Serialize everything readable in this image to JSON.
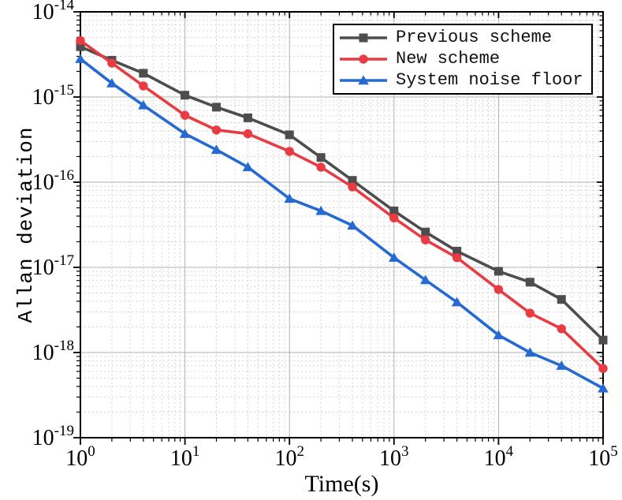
{
  "figure": {
    "background": "#ffffff",
    "axis_color": "#000000"
  },
  "chart_data": {
    "type": "line",
    "title": "",
    "xlabel": "Time(s)",
    "ylabel": "Allan deviation",
    "x_scale": "log",
    "y_scale": "log",
    "xlim": [
      1,
      100000
    ],
    "ylim": [
      1e-19,
      1e-14
    ],
    "x_tick_exponents": [
      0,
      1,
      2,
      3,
      4,
      5
    ],
    "y_tick_exponents": [
      -14,
      -15,
      -16,
      -17,
      -18,
      -19
    ],
    "grid": {
      "major": true,
      "minor": true,
      "major_color": "#b0b0b0",
      "minor_color": "#d6d6d6"
    },
    "legend_position": "top-right",
    "x": [
      1,
      2,
      4,
      10,
      20,
      40,
      100,
      200,
      400,
      1000,
      2000,
      4000,
      10000,
      20000,
      40000,
      100000
    ],
    "series": [
      {
        "name": "Previous scheme",
        "color": "#4d4d4d",
        "marker": "square",
        "values": [
          3.9e-15,
          2.7e-15,
          1.9e-15,
          1.05e-15,
          7.6e-16,
          5.7e-16,
          3.6e-16,
          1.95e-16,
          1.05e-16,
          4.6e-17,
          2.6e-17,
          1.55e-17,
          9e-18,
          6.7e-18,
          4.2e-18,
          1.4e-18
        ]
      },
      {
        "name": "New scheme",
        "color": "#e83b42",
        "marker": "circle",
        "values": [
          4.6e-15,
          2.5e-15,
          1.35e-15,
          6.1e-16,
          4.1e-16,
          3.7e-16,
          2.3e-16,
          1.5e-16,
          8.8e-17,
          3.8e-17,
          2.1e-17,
          1.3e-17,
          5.5e-18,
          2.9e-18,
          1.9e-18,
          6.5e-19
        ]
      },
      {
        "name": "System noise floor",
        "color": "#2569d2",
        "marker": "triangle-up",
        "values": [
          2.8e-15,
          1.45e-15,
          8e-16,
          3.7e-16,
          2.4e-16,
          1.5e-16,
          6.4e-17,
          4.6e-17,
          3.1e-17,
          1.3e-17,
          7.1e-18,
          3.9e-18,
          1.6e-18,
          1e-18,
          7e-19,
          3.8e-19
        ]
      }
    ]
  }
}
